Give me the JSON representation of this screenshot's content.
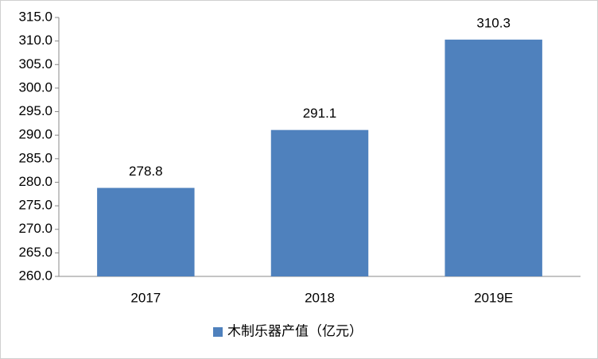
{
  "chart_data": {
    "type": "bar",
    "categories": [
      "2017",
      "2018",
      "2019E"
    ],
    "series": [
      {
        "name": "木制乐器产值（亿元）",
        "color": "#4f81bd",
        "values": [
          278.8,
          291.1,
          310.3
        ]
      }
    ],
    "ylim": [
      260,
      315
    ],
    "yticks": [
      {
        "value": 260,
        "label": "260.0"
      },
      {
        "value": 265,
        "label": "265.0"
      },
      {
        "value": 270,
        "label": "270.0"
      },
      {
        "value": 275,
        "label": "275.0"
      },
      {
        "value": 280,
        "label": "280.0"
      },
      {
        "value": 285,
        "label": "285.0"
      },
      {
        "value": 290,
        "label": "290.0"
      },
      {
        "value": 295,
        "label": "295.0"
      },
      {
        "value": 300,
        "label": "300.0"
      },
      {
        "value": 305,
        "label": "305.0"
      },
      {
        "value": 310,
        "label": "310.0"
      },
      {
        "value": 315,
        "label": "315.0"
      }
    ],
    "grid": false,
    "legend": "bottom"
  }
}
